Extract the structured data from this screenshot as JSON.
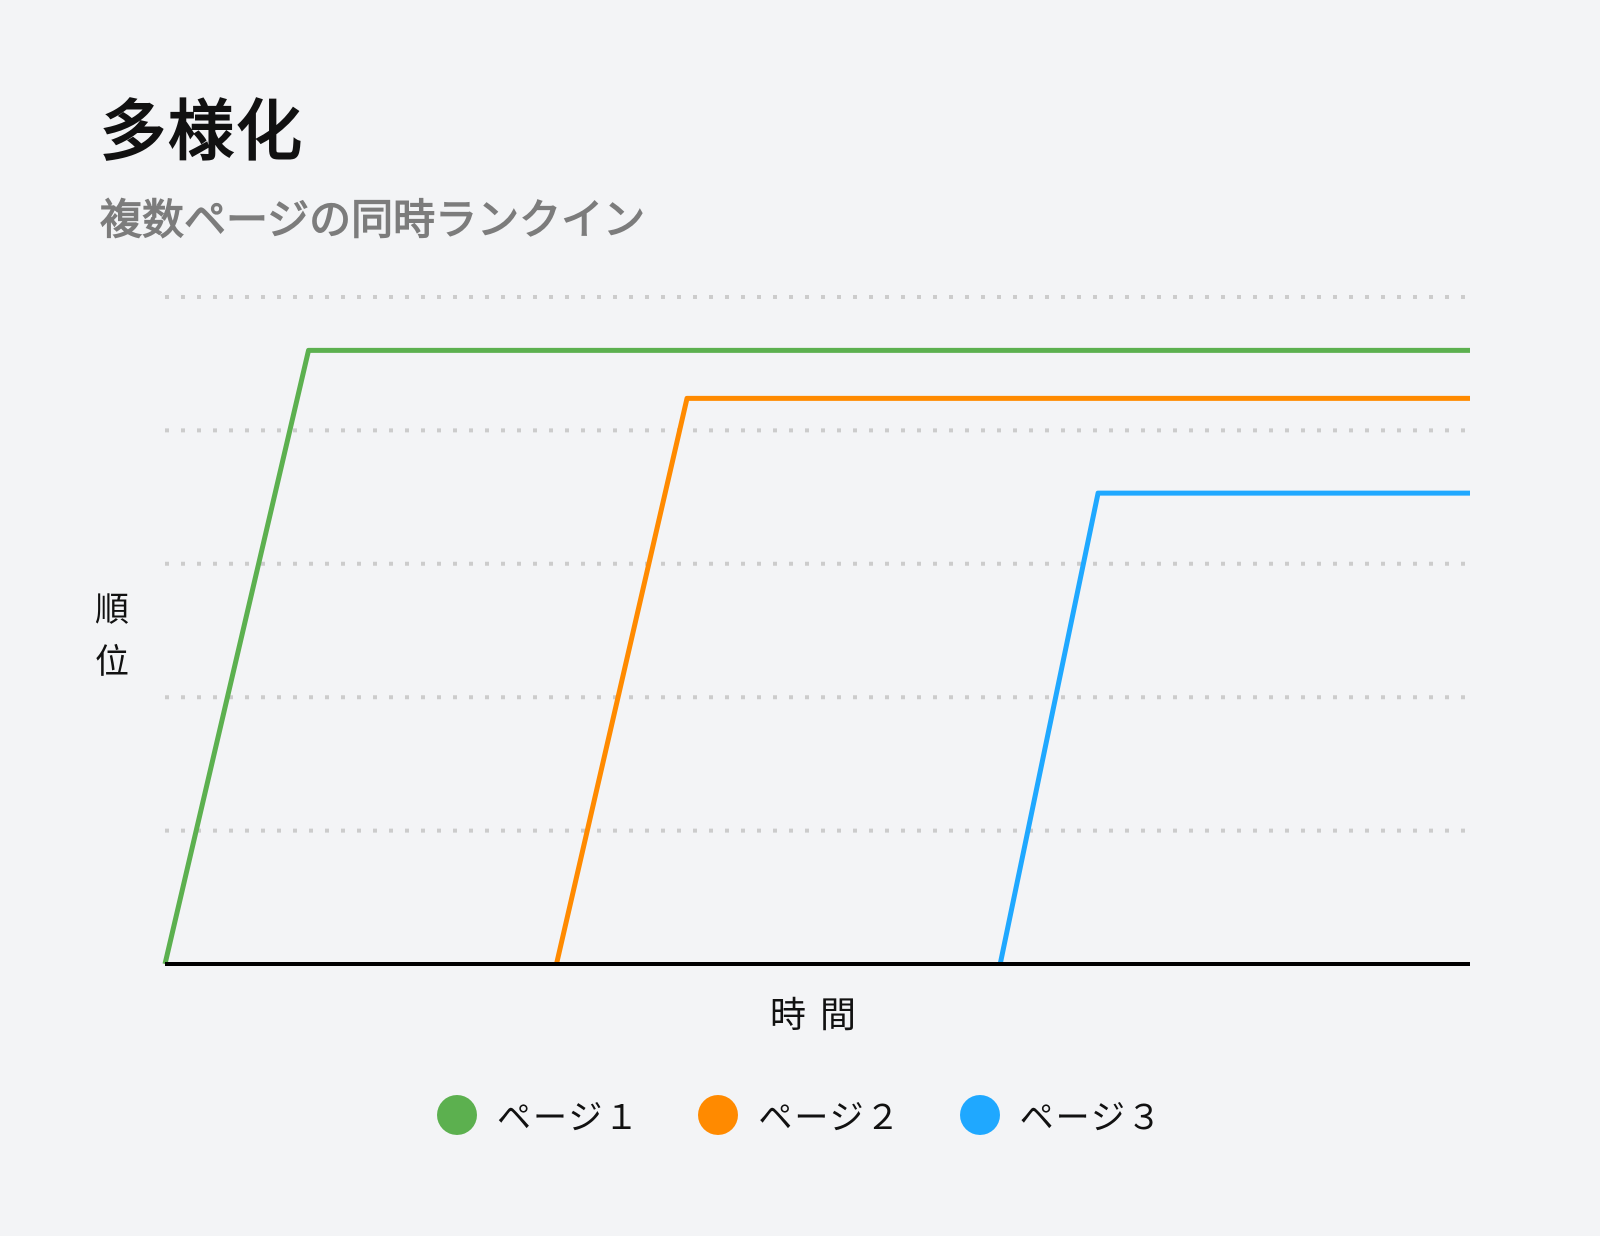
{
  "header": {
    "title": "多様化",
    "subtitle": "複数ページの同時ランクイン"
  },
  "axes": {
    "ylabel_chars": [
      "順",
      "位"
    ],
    "xlabel": "時間"
  },
  "legend": [
    {
      "label": "ページ１",
      "color": "#5cb04f"
    },
    {
      "label": "ページ２",
      "color": "#ff8a00"
    },
    {
      "label": "ページ３",
      "color": "#1fa8ff"
    }
  ],
  "chart_data": {
    "type": "line",
    "title": "多様化",
    "subtitle": "複数ページの同時ランクイン",
    "xlabel": "時間",
    "ylabel": "順位",
    "grid": true,
    "grid_style": "dotted horizontal",
    "legend_position": "bottom",
    "x_range": [
      0,
      100
    ],
    "y_range": [
      0,
      5
    ],
    "series": [
      {
        "name": "ページ１",
        "color": "#5cb04f",
        "points": [
          [
            0,
            0
          ],
          [
            11,
            4.6
          ],
          [
            100,
            4.6
          ]
        ]
      },
      {
        "name": "ページ２",
        "color": "#ff8a00",
        "points": [
          [
            30,
            0
          ],
          [
            40,
            4.24
          ],
          [
            100,
            4.24
          ]
        ]
      },
      {
        "name": "ページ３",
        "color": "#1fa8ff",
        "points": [
          [
            64,
            0
          ],
          [
            71.5,
            3.53
          ],
          [
            100,
            3.53
          ]
        ]
      }
    ]
  }
}
